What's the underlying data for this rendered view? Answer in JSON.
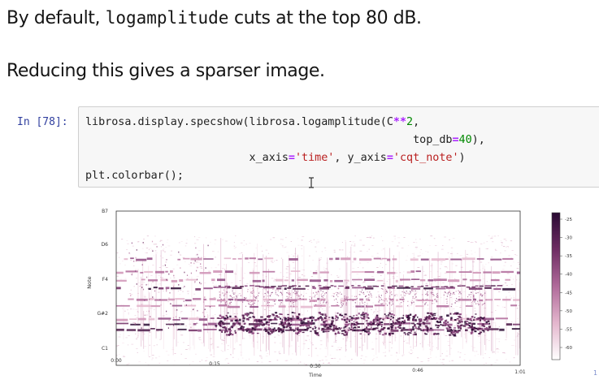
{
  "markdown": {
    "line1_pre": "By default, ",
    "line1_code": "logamplitude",
    "line1_post": " cuts at the top 80 dB.",
    "line2": "Reducing this gives a sparser image."
  },
  "cell": {
    "prompt": "In [78]:",
    "code_lines": [
      [
        {
          "t": "librosa.display.specshow(librosa.logamplitude(C",
          "c": ""
        },
        {
          "t": "**",
          "c": "tok-op"
        },
        {
          "t": "2",
          "c": "tok-num"
        },
        {
          "t": ",",
          "c": ""
        }
      ],
      [
        {
          "t": "                                                  top_db",
          "c": ""
        },
        {
          "t": "=",
          "c": "tok-op"
        },
        {
          "t": "40",
          "c": "tok-num"
        },
        {
          "t": "),",
          "c": ""
        }
      ],
      [
        {
          "t": "                         x_axis",
          "c": ""
        },
        {
          "t": "=",
          "c": "tok-op"
        },
        {
          "t": "'time'",
          "c": "tok-str"
        },
        {
          "t": ", y_axis",
          "c": ""
        },
        {
          "t": "=",
          "c": "tok-op"
        },
        {
          "t": "'cqt_note'",
          "c": "tok-str"
        },
        {
          "t": ")",
          "c": ""
        }
      ],
      [
        {
          "t": "plt.colorbar();",
          "c": ""
        }
      ]
    ]
  },
  "plot": {
    "ylabel": "Note",
    "xlabel": "Time",
    "yticks": [
      "B7",
      "D6",
      "F4",
      "G#2",
      "C1"
    ],
    "xticks": [
      "0:00",
      "0:15",
      "0:30",
      "0:46",
      "1:01"
    ],
    "colorbar_ticks": [
      "-25",
      "-30",
      "-35",
      "-40",
      "-45",
      "-50",
      "-55",
      "-60"
    ],
    "colormap": {
      "high": "#2a0a33",
      "mid": "#b06a9a",
      "low": "#ffffff"
    }
  },
  "partial_glyph": "1"
}
